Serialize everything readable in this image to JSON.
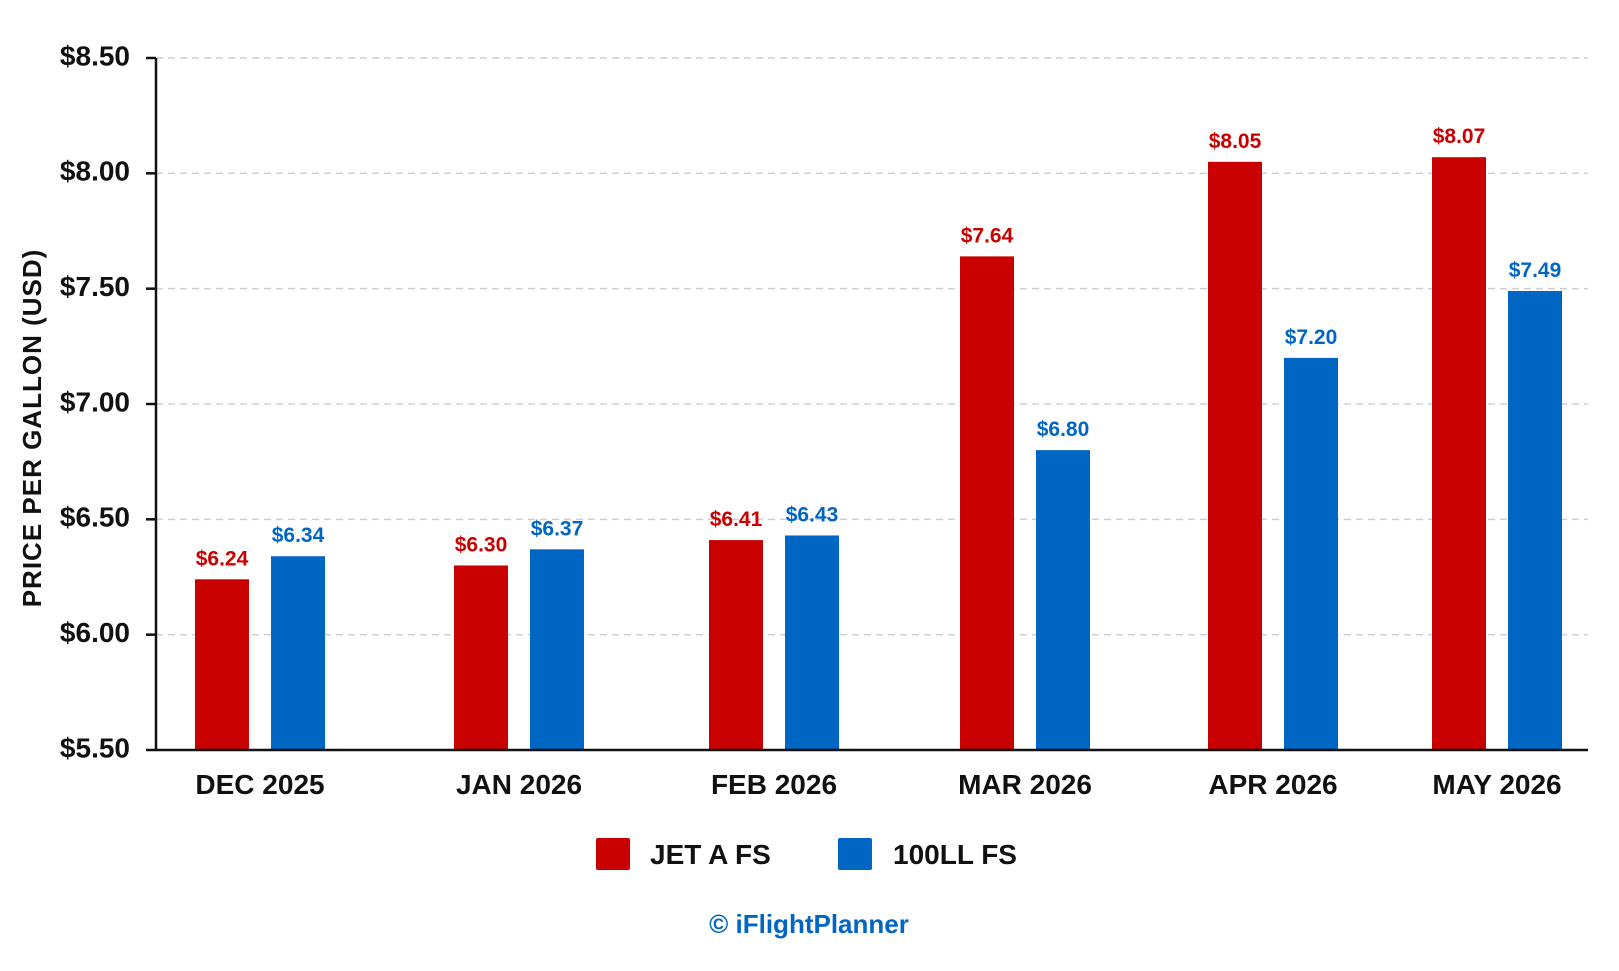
{
  "chart_data": {
    "type": "bar",
    "categories": [
      "DEC 2025",
      "JAN 2026",
      "FEB 2026",
      "MAR 2026",
      "APR 2026",
      "MAY 2026"
    ],
    "series": [
      {
        "name": "JET A FS",
        "color": "#c90000",
        "values": [
          6.24,
          6.3,
          6.41,
          7.64,
          8.05,
          8.07
        ],
        "labels": [
          "$6.24",
          "$6.30",
          "$6.41",
          "$7.64",
          "$8.05",
          "$8.07"
        ]
      },
      {
        "name": "100LL FS",
        "color": "#0066c4",
        "values": [
          6.34,
          6.37,
          6.43,
          6.8,
          7.2,
          7.49
        ],
        "labels": [
          "$6.34",
          "$6.37",
          "$6.43",
          "$6.80",
          "$7.20",
          "$7.49"
        ]
      }
    ],
    "ylabel": "PRICE PER GALLON (USD)",
    "ylim": [
      5.5,
      8.5
    ],
    "yticks": [
      5.5,
      6.0,
      6.5,
      7.0,
      7.5,
      8.0,
      8.5
    ],
    "ytick_labels": [
      "$5.50",
      "$6.00",
      "$6.50",
      "$7.00",
      "$7.50",
      "$8.00",
      "$8.50"
    ],
    "grid": true,
    "legend_position": "bottom-center"
  },
  "credit": "© iFlightPlanner"
}
